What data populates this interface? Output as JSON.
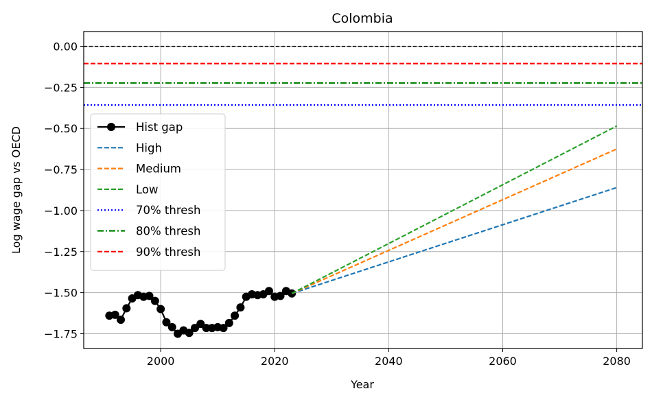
{
  "chart_data": {
    "type": "line",
    "title": "Colombia",
    "xlabel": "Year",
    "ylabel": "Log wage gap vs OECD",
    "xlim": [
      1986.5,
      2084.5
    ],
    "ylim": [
      -1.84,
      0.09
    ],
    "xticks": [
      2000,
      2020,
      2040,
      2060,
      2080
    ],
    "yticks": [
      0.0,
      -0.25,
      -0.5,
      -0.75,
      -1.0,
      -1.25,
      -1.5,
      -1.75
    ],
    "ytick_labels": [
      "0.00",
      "−0.25",
      "−0.50",
      "−0.75",
      "−1.00",
      "−1.25",
      "−1.50",
      "−1.75"
    ],
    "grid": true,
    "legend_position": "center-left",
    "series": [
      {
        "name": "Hist gap",
        "style": "solid-marker",
        "color": "#000000",
        "x": [
          1991,
          1992,
          1993,
          1994,
          1995,
          1996,
          1997,
          1998,
          1999,
          2000,
          2001,
          2002,
          2003,
          2004,
          2005,
          2006,
          2007,
          2008,
          2009,
          2010,
          2011,
          2012,
          2013,
          2014,
          2015,
          2016,
          2017,
          2018,
          2019,
          2020,
          2021,
          2022,
          2023
        ],
        "y": [
          -1.64,
          -1.635,
          -1.665,
          -1.595,
          -1.535,
          -1.515,
          -1.525,
          -1.52,
          -1.55,
          -1.6,
          -1.68,
          -1.71,
          -1.75,
          -1.73,
          -1.745,
          -1.715,
          -1.69,
          -1.715,
          -1.715,
          -1.71,
          -1.715,
          -1.685,
          -1.64,
          -1.59,
          -1.525,
          -1.51,
          -1.515,
          -1.51,
          -1.49,
          -1.525,
          -1.52,
          -1.49,
          -1.505
        ]
      },
      {
        "name": "High",
        "style": "dashed",
        "color": "#1f77b4",
        "x": [
          2023,
          2080
        ],
        "y": [
          -1.505,
          -0.86
        ]
      },
      {
        "name": "Medium",
        "style": "dashed",
        "color": "#ff7f0e",
        "x": [
          2023,
          2080
        ],
        "y": [
          -1.505,
          -0.625
        ]
      },
      {
        "name": "Low",
        "style": "dashed",
        "color": "#2ca02c",
        "x": [
          2023,
          2080
        ],
        "y": [
          -1.505,
          -0.485
        ]
      },
      {
        "name": "70% thresh",
        "style": "dotted",
        "color": "#0000ff",
        "hline": -0.357
      },
      {
        "name": "80% thresh",
        "style": "dashdot",
        "color": "#008000",
        "hline": -0.223
      },
      {
        "name": "90% thresh",
        "style": "dashed",
        "color": "#ff0000",
        "hline": -0.105
      },
      {
        "name": "",
        "style": "dashed-thin",
        "color": "#000000",
        "hline": 0.0
      }
    ]
  }
}
